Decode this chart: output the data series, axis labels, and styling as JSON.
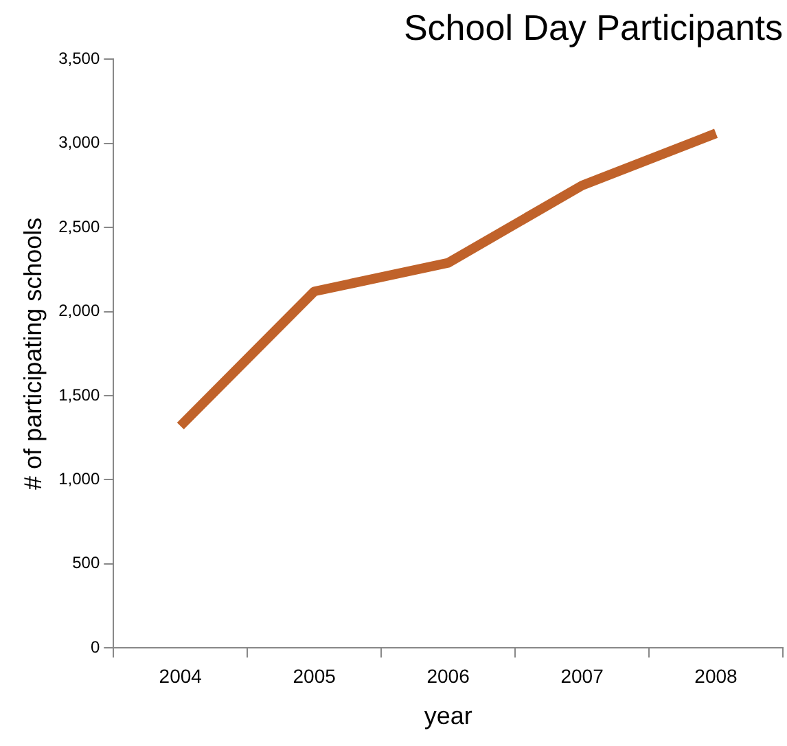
{
  "chart_data": {
    "type": "line",
    "title": "School Day Participants",
    "xlabel": "year",
    "ylabel": "# of participating schools",
    "categories": [
      "2004",
      "2005",
      "2006",
      "2007",
      "2008"
    ],
    "series": [
      {
        "color": "#c0622a",
        "values": [
          1320,
          2120,
          2290,
          2750,
          3060
        ]
      }
    ],
    "ylim": [
      0,
      3500
    ],
    "yticks": [
      {
        "value": 0,
        "label": "0"
      },
      {
        "value": 500,
        "label": "500"
      },
      {
        "value": 1000,
        "label": "1,000"
      },
      {
        "value": 1500,
        "label": "1,500"
      },
      {
        "value": 2000,
        "label": "2,000"
      },
      {
        "value": 2500,
        "label": "2,500"
      },
      {
        "value": 3000,
        "label": "3,000"
      },
      {
        "value": 3500,
        "label": "3,500"
      }
    ],
    "grid": false,
    "legend": false,
    "marker": "none",
    "line_style": "solid"
  }
}
